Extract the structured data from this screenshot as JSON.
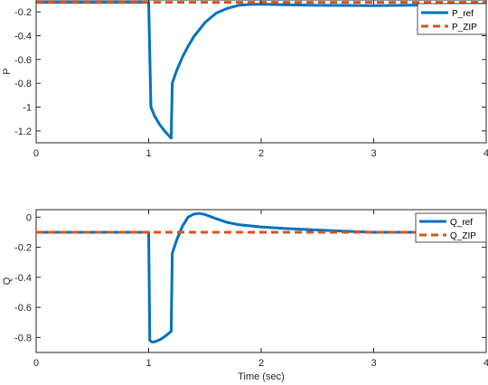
{
  "chart_data": [
    {
      "type": "line",
      "title": "",
      "xlabel": "",
      "ylabel": "P",
      "xlim": [
        0,
        4
      ],
      "ylim": [
        -1.3,
        -0.1
      ],
      "xticks": [
        0,
        1,
        2,
        3,
        4
      ],
      "xtick_labels": [
        "0",
        "1",
        "2",
        "3",
        "4"
      ],
      "yticks": [
        -0.2,
        -0.4,
        -0.6,
        -0.8,
        -1,
        -1.2
      ],
      "ytick_labels": [
        "-0.2",
        "-0.4",
        "-0.6",
        "-0.8",
        "-1",
        "-1.2"
      ],
      "grid": false,
      "legend_position": "top-right",
      "series": [
        {
          "name": "P_ref",
          "color": "#0072BD",
          "style": "solid",
          "x": [
            0,
            1.0,
            1.02,
            1.05,
            1.1,
            1.15,
            1.2,
            1.21,
            1.25,
            1.3,
            1.35,
            1.4,
            1.5,
            1.6,
            1.7,
            1.8,
            1.9,
            2.0,
            2.2,
            2.5,
            3.0,
            3.5,
            4.0
          ],
          "y": [
            -0.12,
            -0.12,
            -1.0,
            -1.07,
            -1.15,
            -1.21,
            -1.26,
            -0.8,
            -0.69,
            -0.58,
            -0.49,
            -0.41,
            -0.29,
            -0.21,
            -0.17,
            -0.145,
            -0.137,
            -0.135,
            -0.14,
            -0.145,
            -0.147,
            -0.142,
            -0.135
          ]
        },
        {
          "name": "P_ZIP",
          "color": "#D95319",
          "style": "dashed",
          "x": [
            0,
            4
          ],
          "y": [
            -0.12,
            -0.12
          ]
        }
      ]
    },
    {
      "type": "line",
      "title": "",
      "xlabel": "Time (sec)",
      "ylabel": "Q",
      "xlim": [
        0,
        4
      ],
      "ylim": [
        -0.9,
        0.05
      ],
      "xticks": [
        0,
        1,
        2,
        3,
        4
      ],
      "xtick_labels": [
        "0",
        "1",
        "2",
        "3",
        "4"
      ],
      "yticks": [
        0,
        -0.2,
        -0.4,
        -0.6,
        -0.8
      ],
      "ytick_labels": [
        "0",
        "-0.2",
        "-0.4",
        "-0.6",
        "-0.8"
      ],
      "grid": false,
      "legend_position": "top-right",
      "series": [
        {
          "name": "Q_ref",
          "color": "#0072BD",
          "style": "solid",
          "x": [
            0,
            1.0,
            1.01,
            1.03,
            1.05,
            1.1,
            1.15,
            1.2,
            1.21,
            1.25,
            1.3,
            1.35,
            1.4,
            1.45,
            1.5,
            1.6,
            1.7,
            1.8,
            2.0,
            2.2,
            2.5,
            2.8,
            3.0,
            3.5,
            4.0
          ],
          "y": [
            -0.1,
            -0.1,
            -0.82,
            -0.83,
            -0.83,
            -0.815,
            -0.79,
            -0.76,
            -0.24,
            -0.15,
            -0.06,
            0.0,
            0.02,
            0.025,
            0.018,
            -0.01,
            -0.035,
            -0.05,
            -0.065,
            -0.075,
            -0.085,
            -0.095,
            -0.1,
            -0.1,
            -0.1
          ]
        },
        {
          "name": "Q_ZIP",
          "color": "#D95319",
          "style": "dashed",
          "x": [
            0,
            4
          ],
          "y": [
            -0.1,
            -0.1
          ]
        }
      ]
    }
  ]
}
